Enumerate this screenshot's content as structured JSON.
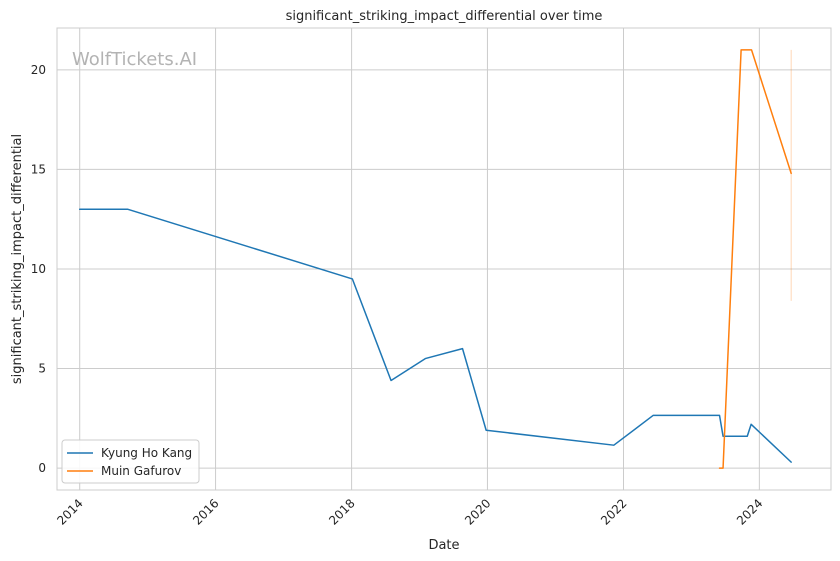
{
  "watermark": "WolfTickets.AI",
  "chart_data": {
    "type": "line",
    "title": "significant_striking_impact_differential over time",
    "xlabel": "Date",
    "ylabel": "significant_striking_impact_differential",
    "x_ticks": [
      "2014",
      "2016",
      "2018",
      "2020",
      "2022",
      "2024"
    ],
    "y_ticks": [
      "0",
      "5",
      "10",
      "15",
      "20"
    ],
    "xlim": [
      "2013-09-01",
      "2025-01-20"
    ],
    "ylim": [
      -1.1,
      22.1
    ],
    "grid": true,
    "legend_position": "lower-left",
    "series": [
      {
        "name": "Kyung Ho Kang",
        "color": "#1f77b4",
        "points": [
          [
            "2014-01-01",
            13.0
          ],
          [
            "2014-09-15",
            13.0
          ],
          [
            "2018-01-05",
            9.5
          ],
          [
            "2018-08-01",
            4.4
          ],
          [
            "2019-02-01",
            5.5
          ],
          [
            "2019-08-20",
            6.0
          ],
          [
            "2019-12-25",
            1.9
          ],
          [
            "2021-11-10",
            1.15
          ],
          [
            "2022-06-10",
            2.65
          ],
          [
            "2023-06-01",
            2.65
          ],
          [
            "2023-06-20",
            1.6
          ],
          [
            "2023-10-28",
            1.6
          ],
          [
            "2023-11-18",
            2.2
          ],
          [
            "2024-06-20",
            0.3
          ]
        ]
      },
      {
        "name": "Muin Gafurov",
        "color": "#ff7f0e",
        "points": [
          [
            "2023-06-01",
            0.0
          ],
          [
            "2023-06-20",
            0.0
          ],
          [
            "2023-09-25",
            21.0
          ],
          [
            "2023-11-20",
            21.0
          ],
          [
            "2024-06-20",
            14.8
          ]
        ],
        "error_bar": {
          "x": "2024-06-20",
          "low": 8.4,
          "high": 21.0
        }
      }
    ]
  }
}
